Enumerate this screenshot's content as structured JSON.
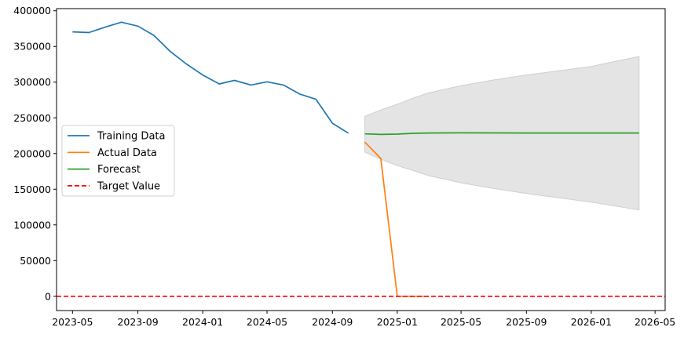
{
  "chart_data": {
    "type": "line",
    "x_axis": {
      "type": "date",
      "range": [
        "2023-04-01",
        "2026-05-20"
      ],
      "ticks": [
        "2023-05",
        "2023-09",
        "2024-01",
        "2024-05",
        "2024-09",
        "2025-01",
        "2025-05",
        "2025-09",
        "2026-01",
        "2026-05"
      ]
    },
    "y_axis": {
      "range": [
        -20000,
        403000
      ],
      "ticks": [
        0,
        50000,
        100000,
        150000,
        200000,
        250000,
        300000,
        350000,
        400000
      ],
      "tick_labels": [
        "0",
        "50000",
        "100000",
        "150000",
        "200000",
        "250000",
        "300000",
        "350000",
        "400000"
      ]
    },
    "grid": false,
    "legend_position": "center-left",
    "series": [
      {
        "name": "Training Data",
        "color": "#1f77b4",
        "style": "solid",
        "points": [
          [
            "2023-05-01",
            370500
          ],
          [
            "2023-06-01",
            369500
          ],
          [
            "2023-07-01",
            377000
          ],
          [
            "2023-08-01",
            384000
          ],
          [
            "2023-09-01",
            378500
          ],
          [
            "2023-10-01",
            365500
          ],
          [
            "2023-11-01",
            343000
          ],
          [
            "2023-12-01",
            325500
          ],
          [
            "2024-01-01",
            310000
          ],
          [
            "2024-02-01",
            297500
          ],
          [
            "2024-03-01",
            302500
          ],
          [
            "2024-04-01",
            296000
          ],
          [
            "2024-05-01",
            300500
          ],
          [
            "2024-06-01",
            296000
          ],
          [
            "2024-07-01",
            283500
          ],
          [
            "2024-08-01",
            276000
          ],
          [
            "2024-09-01",
            242500
          ],
          [
            "2024-10-01",
            228500
          ]
        ]
      },
      {
        "name": "Actual Data",
        "color": "#ff7f0e",
        "style": "solid",
        "points": [
          [
            "2024-11-01",
            216000
          ],
          [
            "2024-12-01",
            193000
          ],
          [
            "2025-01-01",
            0
          ],
          [
            "2025-02-01",
            0
          ],
          [
            "2025-03-01",
            0
          ]
        ]
      },
      {
        "name": "Forecast",
        "color": "#2ca02c",
        "style": "solid",
        "points": [
          [
            "2024-11-01",
            227500
          ],
          [
            "2024-12-01",
            226800
          ],
          [
            "2025-01-01",
            227200
          ],
          [
            "2025-02-01",
            228300
          ],
          [
            "2025-03-01",
            228800
          ],
          [
            "2025-05-01",
            229000
          ],
          [
            "2025-09-01",
            228800
          ],
          [
            "2026-01-01",
            228800
          ],
          [
            "2026-04-01",
            228800
          ]
        ]
      },
      {
        "name": "Target Value",
        "color": "#ff0000",
        "style": "dashed",
        "y": 0
      }
    ],
    "confidence_band": {
      "color": "#e4e4e4",
      "points": [
        [
          "2024-11-01",
          252000,
          202000
        ],
        [
          "2024-12-01",
          261000,
          192000
        ],
        [
          "2025-01-01",
          269000,
          183000
        ],
        [
          "2025-02-01",
          278000,
          176000
        ],
        [
          "2025-03-01",
          285000,
          169000
        ],
        [
          "2025-04-01",
          290000,
          164000
        ],
        [
          "2025-05-01",
          295000,
          159000
        ],
        [
          "2025-07-01",
          303000,
          151000
        ],
        [
          "2025-09-01",
          310000,
          144000
        ],
        [
          "2025-11-01",
          316000,
          138000
        ],
        [
          "2026-01-01",
          322000,
          132000
        ],
        [
          "2026-04-01",
          336000,
          121000
        ]
      ]
    }
  }
}
